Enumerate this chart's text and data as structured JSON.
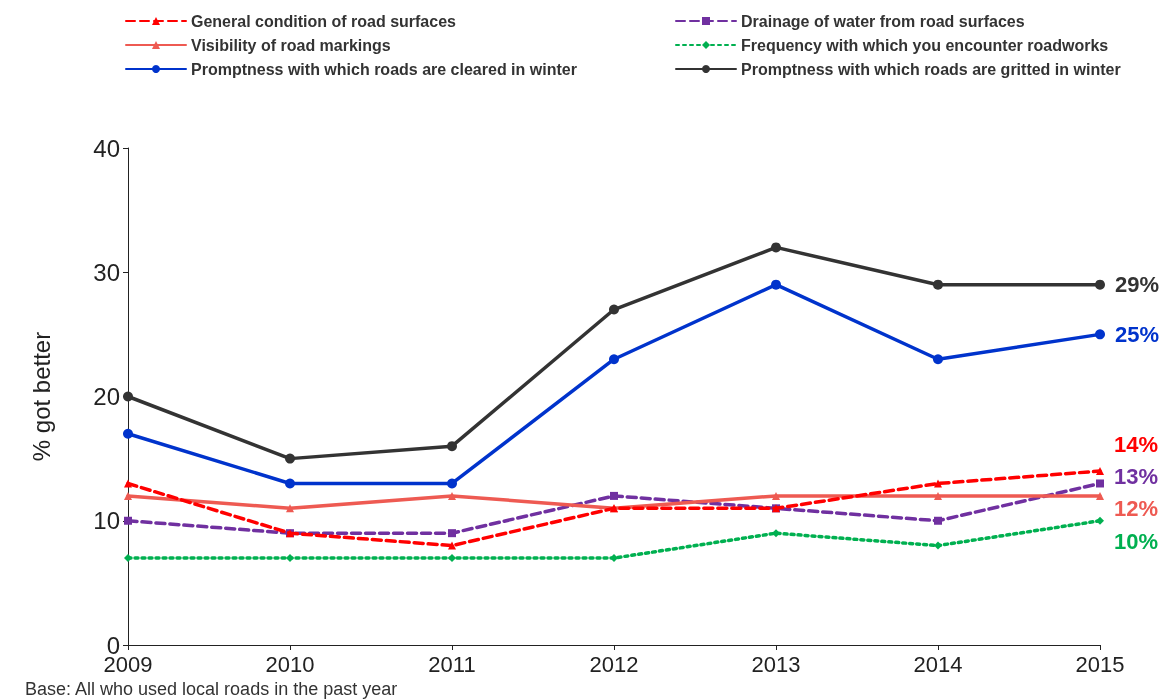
{
  "chart_data": {
    "type": "line",
    "ylabel": "% got better",
    "categories": [
      "2009",
      "2010",
      "2011",
      "2012",
      "2013",
      "2014",
      "2015"
    ],
    "ylim": [
      0,
      40
    ],
    "yticks": [
      0,
      10,
      20,
      30,
      40
    ],
    "grid": false,
    "legend": "top",
    "series": [
      {
        "name": "General condition of road surfaces",
        "color": "#ff0000",
        "marker": "triangle",
        "line_style": "dashed",
        "values": [
          13,
          9,
          8,
          11,
          11,
          13,
          14
        ],
        "value_labels": [
          null,
          null,
          null,
          null,
          null,
          null,
          "14%"
        ]
      },
      {
        "name": "Drainage of water from road surfaces",
        "color": "#7030a0",
        "marker": "square",
        "line_style": "dashed",
        "values": [
          10,
          9,
          9,
          12,
          11,
          10,
          13
        ],
        "value_labels": [
          null,
          null,
          null,
          null,
          null,
          null,
          "13%"
        ]
      },
      {
        "name": "Visibility of road markings",
        "color": "#ee5a52",
        "marker": "triangle",
        "line_style": "solid",
        "values": [
          12,
          11,
          12,
          11,
          12,
          12,
          12
        ],
        "value_labels": [
          null,
          null,
          null,
          null,
          null,
          null,
          "12%"
        ]
      },
      {
        "name": "Frequency with which you encounter roadworks",
        "color": "#00b050",
        "marker": "diamond",
        "line_style": "dotted",
        "values": [
          7,
          7,
          7,
          7,
          9,
          8,
          10
        ],
        "value_labels": [
          null,
          null,
          null,
          null,
          null,
          null,
          "10%"
        ]
      },
      {
        "name": "Promptness with which roads are cleared in winter",
        "color": "#0033cc",
        "marker": "circle",
        "line_style": "solid",
        "values": [
          17,
          13,
          13,
          23,
          29,
          23,
          25
        ],
        "value_labels": [
          null,
          null,
          null,
          null,
          null,
          null,
          "25%"
        ]
      },
      {
        "name": "Promptness with which roads are gritted in winter",
        "color": "#333333",
        "marker": "circle",
        "line_style": "solid",
        "values": [
          20,
          15,
          16,
          27,
          32,
          29,
          29
        ],
        "value_labels": [
          null,
          null,
          null,
          null,
          null,
          null,
          "29%"
        ]
      }
    ],
    "annotations": [
      "Base: All who used local roads in the past year"
    ]
  }
}
